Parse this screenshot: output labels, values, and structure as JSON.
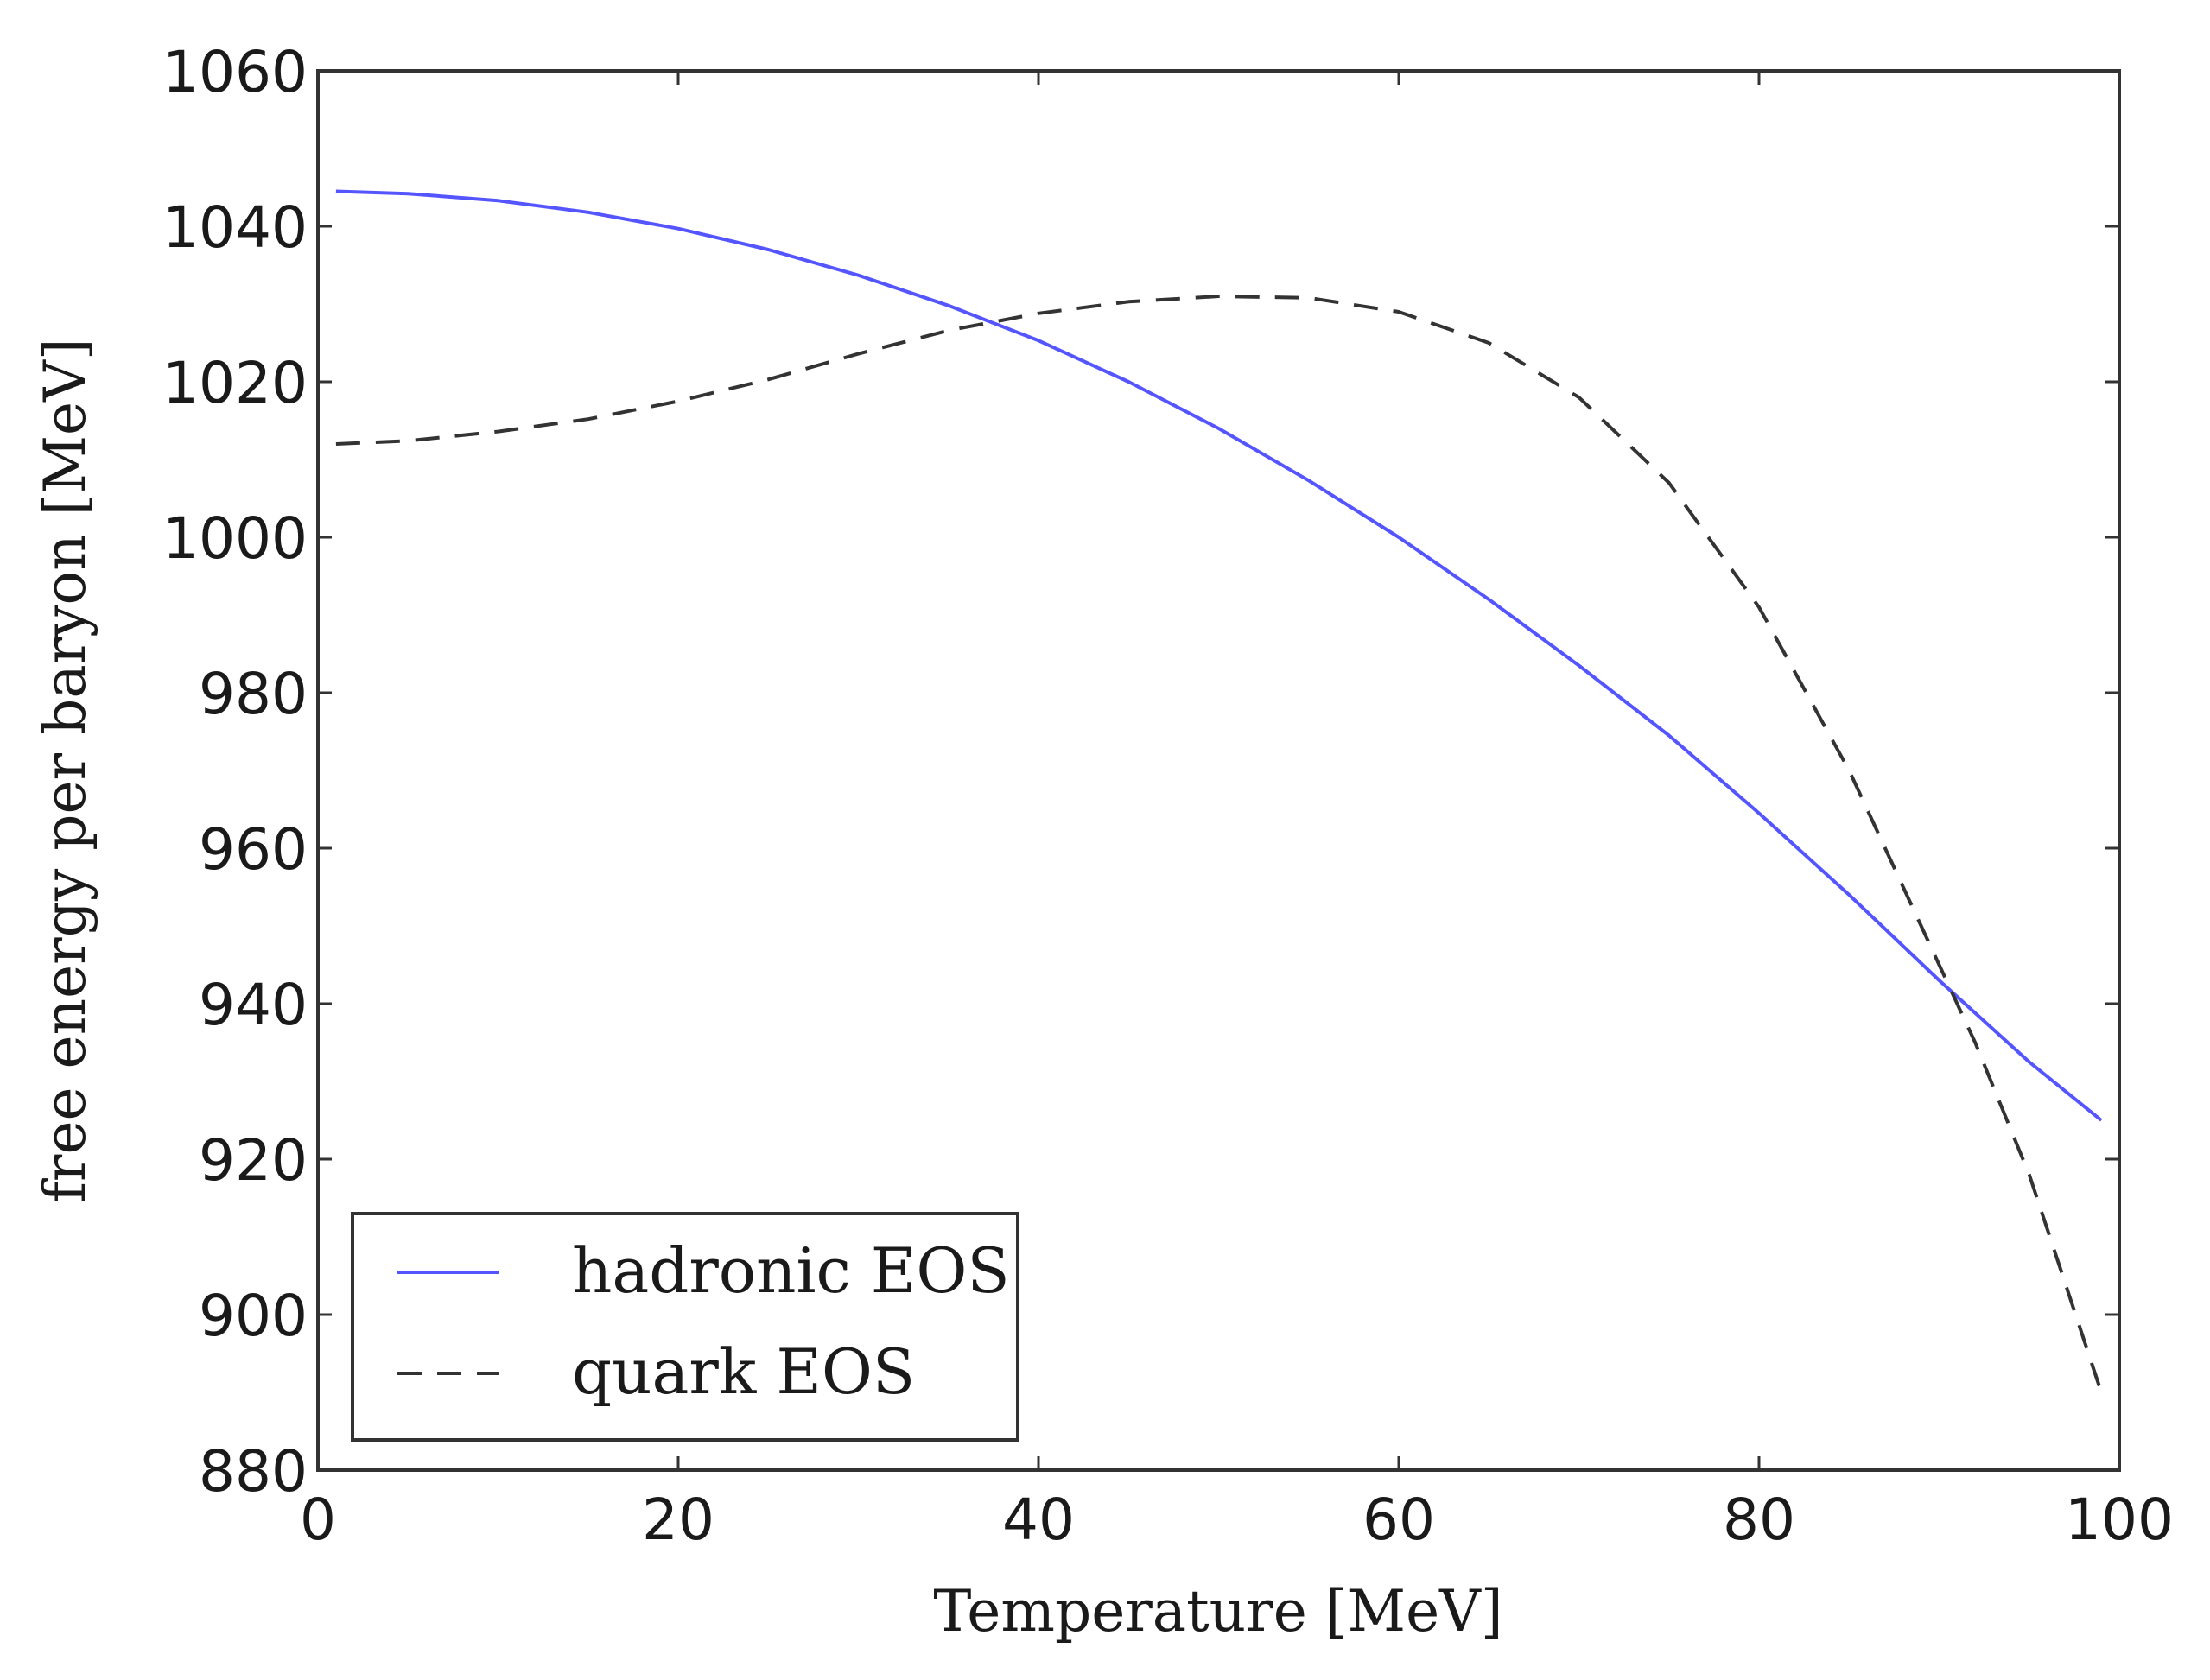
{
  "chart_data": {
    "type": "line",
    "title": "",
    "xlabel": "Temperature [MeV]",
    "ylabel": "free energy per baryon [MeV]",
    "xlim": [
      0,
      100
    ],
    "ylim": [
      880,
      1060
    ],
    "xticks": [
      0,
      20,
      40,
      60,
      80,
      100
    ],
    "yticks": [
      880,
      900,
      920,
      940,
      960,
      980,
      1000,
      1020,
      1040,
      1060
    ],
    "xtick_labels": [
      "0",
      "20",
      "40",
      "60",
      "80",
      "100"
    ],
    "ytick_labels": [
      "880",
      "900",
      "920",
      "940",
      "960",
      "980",
      "1000",
      "1020",
      "1040",
      "1060"
    ],
    "grid": false,
    "legend": "lower-left",
    "series": [
      {
        "name": "hadronic EOS",
        "color": "#5555ff",
        "style": "solid",
        "x": [
          1,
          5,
          10,
          15,
          20,
          25,
          30,
          35,
          40,
          45,
          50,
          55,
          60,
          65,
          70,
          75,
          80,
          85,
          90,
          95,
          99
        ],
        "y": [
          1044.5,
          1044.2,
          1043.3,
          1041.8,
          1039.7,
          1037.0,
          1033.7,
          1029.8,
          1025.3,
          1020.0,
          1014.0,
          1007.3,
          1000.0,
          992.0,
          983.5,
          974.5,
          964.5,
          954.0,
          943.0,
          932.5,
          925.0
        ]
      },
      {
        "name": "quark EOS",
        "color": "#333333",
        "style": "dashed",
        "x": [
          1,
          5,
          10,
          15,
          20,
          25,
          30,
          35,
          40,
          45,
          50,
          55,
          60,
          65,
          70,
          75,
          80,
          85,
          90,
          92,
          95,
          99
        ],
        "y": [
          1012.0,
          1012.4,
          1013.6,
          1015.2,
          1017.5,
          1020.3,
          1023.6,
          1026.6,
          1028.8,
          1030.3,
          1031.0,
          1030.8,
          1029.0,
          1025.0,
          1018.0,
          1007.0,
          991.0,
          970.0,
          945.0,
          935.0,
          918.0,
          890.0
        ]
      }
    ]
  }
}
